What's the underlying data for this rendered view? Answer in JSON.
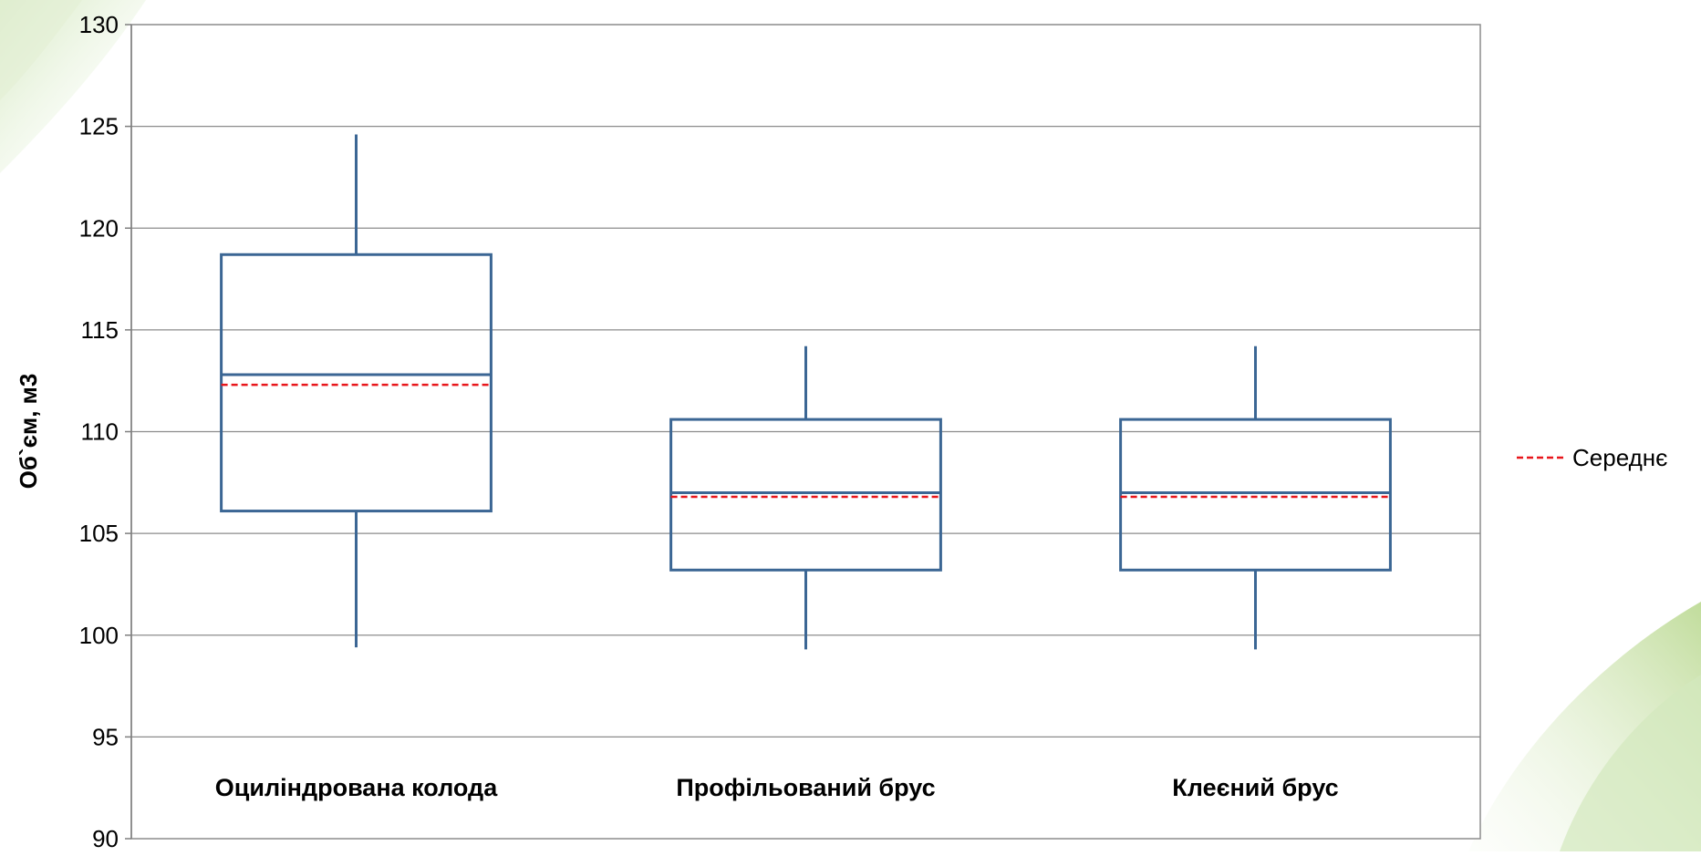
{
  "chart_data": {
    "type": "boxplot",
    "title": "",
    "xlabel": "",
    "ylabel": "Об`єм, м3",
    "ylim": [
      90,
      130
    ],
    "yticks": [
      90,
      95,
      100,
      105,
      110,
      115,
      120,
      125,
      130
    ],
    "grid": true,
    "legend": {
      "position": "right",
      "entries": [
        {
          "label": "Середнє",
          "color": "#e8161b",
          "style": "dashed"
        }
      ]
    },
    "colors": {
      "box": "#3b6694",
      "mean": "#e8161b",
      "grid": "#8c8c8c",
      "axis": "#7f7f7f",
      "accent_green": "#8ec04a"
    },
    "categories": [
      "Оциліндрована колода",
      "Профільований брус",
      "Клеєний брус"
    ],
    "series": [
      {
        "category": "Оциліндрована колода",
        "min": 99.4,
        "q1": 106.1,
        "median": 112.8,
        "mean": 112.3,
        "q3": 118.7,
        "max": 124.6
      },
      {
        "category": "Профільований брус",
        "min": 99.3,
        "q1": 103.2,
        "median": 107.0,
        "mean": 106.8,
        "q3": 110.6,
        "max": 114.2
      },
      {
        "category": "Клеєний брус",
        "min": 99.3,
        "q1": 103.2,
        "median": 107.0,
        "mean": 106.8,
        "q3": 110.6,
        "max": 114.2
      }
    ]
  }
}
